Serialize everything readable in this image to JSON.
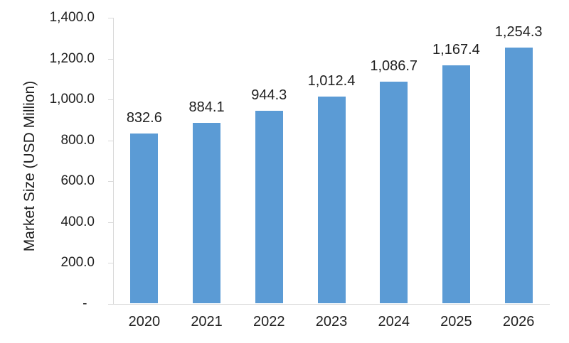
{
  "chart_data": {
    "type": "bar",
    "title": "",
    "xlabel": "",
    "ylabel": "Market Size (USD Million)",
    "categories": [
      "2020",
      "2021",
      "2022",
      "2023",
      "2024",
      "2025",
      "2026"
    ],
    "values": [
      832.6,
      884.1,
      944.3,
      1012.4,
      1086.7,
      1167.4,
      1254.3
    ],
    "value_labels": [
      "832.6",
      "884.1",
      "944.3",
      "1,012.4",
      "1,086.7",
      "1,167.4",
      "1,254.3"
    ],
    "ylim": [
      0,
      1400
    ],
    "ytick_interval": 200,
    "ytick_labels": [
      "-  ",
      "200.0",
      "400.0",
      "600.0",
      "800.0",
      "1,000.0",
      "1,200.0",
      "1,400.0"
    ],
    "grid": false,
    "legend_position": "none",
    "bar_color": "#5B9BD5",
    "axis_color": "#D9D9D9",
    "text_color": "#1f1f1f"
  }
}
